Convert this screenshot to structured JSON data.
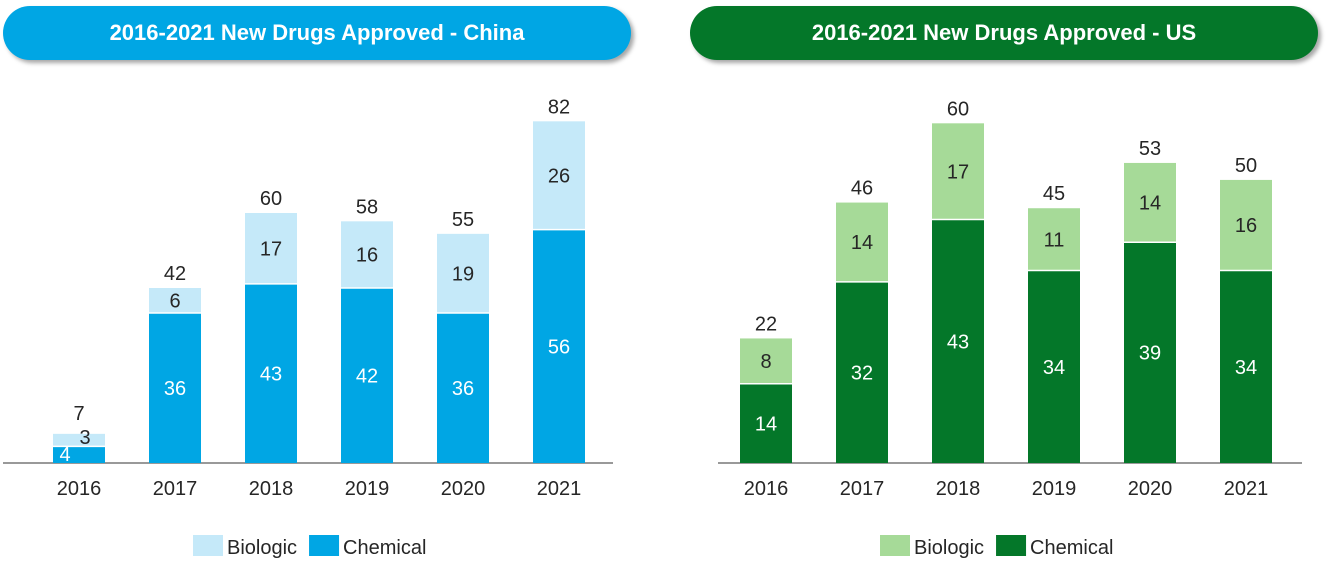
{
  "chart_data": [
    {
      "type": "bar",
      "stacked": true,
      "title": "2016-2021 New Drugs Approved - China",
      "categories": [
        "2016",
        "2017",
        "2018",
        "2019",
        "2020",
        "2021"
      ],
      "series": [
        {
          "name": "Biologic",
          "values": [
            3,
            6,
            17,
            16,
            19,
            26
          ],
          "color": "#c5e9f9"
        },
        {
          "name": "Chemical",
          "values": [
            4,
            36,
            43,
            42,
            36,
            56
          ],
          "color": "#00a6e4"
        }
      ],
      "totals": [
        7,
        42,
        60,
        58,
        55,
        82
      ],
      "ylim": [
        0,
        90
      ],
      "grid": false,
      "legend": "bottom",
      "banner_color": "#00a6e4"
    },
    {
      "type": "bar",
      "stacked": true,
      "title": "2016-2021 New Drugs Approved - US",
      "categories": [
        "2016",
        "2017",
        "2018",
        "2019",
        "2020",
        "2021"
      ],
      "series": [
        {
          "name": "Biologic",
          "values": [
            8,
            14,
            17,
            11,
            14,
            16
          ],
          "color": "#a6da98"
        },
        {
          "name": "Chemical",
          "values": [
            14,
            32,
            43,
            34,
            39,
            34
          ],
          "color": "#047729"
        }
      ],
      "totals": [
        22,
        46,
        60,
        45,
        53,
        50
      ],
      "ylim": [
        0,
        65
      ],
      "grid": false,
      "legend": "bottom",
      "banner_color": "#047729"
    }
  ]
}
